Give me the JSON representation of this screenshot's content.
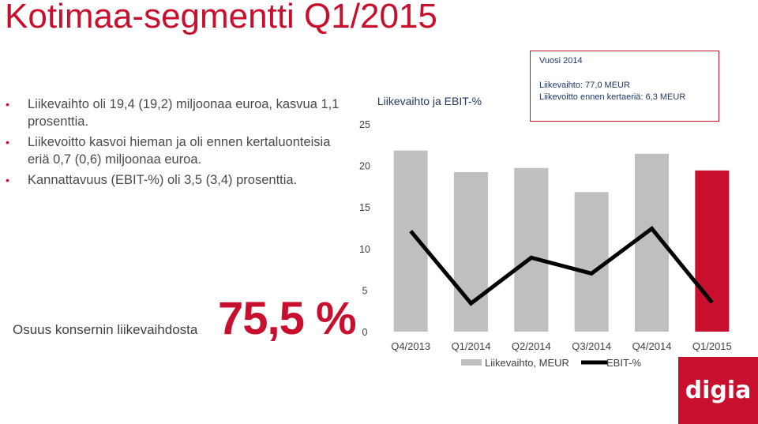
{
  "page": {
    "title": "Kotimaa-segmentti Q1/2015",
    "bullets": [
      "Liikevaihto oli 19,4 (19,2) miljoonaa euroa, kasvua 1,1 prosenttia.",
      "Liikevoitto kasvoi hieman ja oli ennen kertaluonteisia eriä 0,7 (0,6) miljoonaa euroa.",
      "Kannattavuus (EBIT-%) oli 3,5 (3,4) prosenttia."
    ],
    "share_label": "Osuus konsernin liikevaihdosta",
    "share_value": "75,5 %",
    "logo_text": "digia"
  },
  "infobox": {
    "header": "Vuosi 2014",
    "line1": "Liikevaihto:  77,0 MEUR",
    "line2": "Liikevoitto ennen kertaeriä: 6,3 MEUR"
  },
  "colors": {
    "accent": "#c8102e",
    "bar": "#bfbfbf",
    "line": "#000000"
  },
  "chart_data": {
    "type": "bar",
    "title": "Liikevaihto ja EBIT-%",
    "categories": [
      "Q4/2013",
      "Q1/2014",
      "Q2/2014",
      "Q3/2014",
      "Q4/2014",
      "Q1/2015"
    ],
    "y_ticks": [
      "0",
      "5",
      "10",
      "15",
      "20",
      "25"
    ],
    "ylim": [
      0,
      25
    ],
    "grid": false,
    "legend_position": "bottom",
    "highlight_index": 5,
    "series": [
      {
        "name": "Liikevaihto, MEUR",
        "kind": "bar",
        "values": [
          21.8,
          19.2,
          19.7,
          16.8,
          21.4,
          19.4
        ]
      },
      {
        "name": "EBIT-%",
        "kind": "line",
        "values": [
          12.1,
          3.4,
          8.9,
          7.0,
          12.4,
          3.5
        ]
      }
    ]
  }
}
